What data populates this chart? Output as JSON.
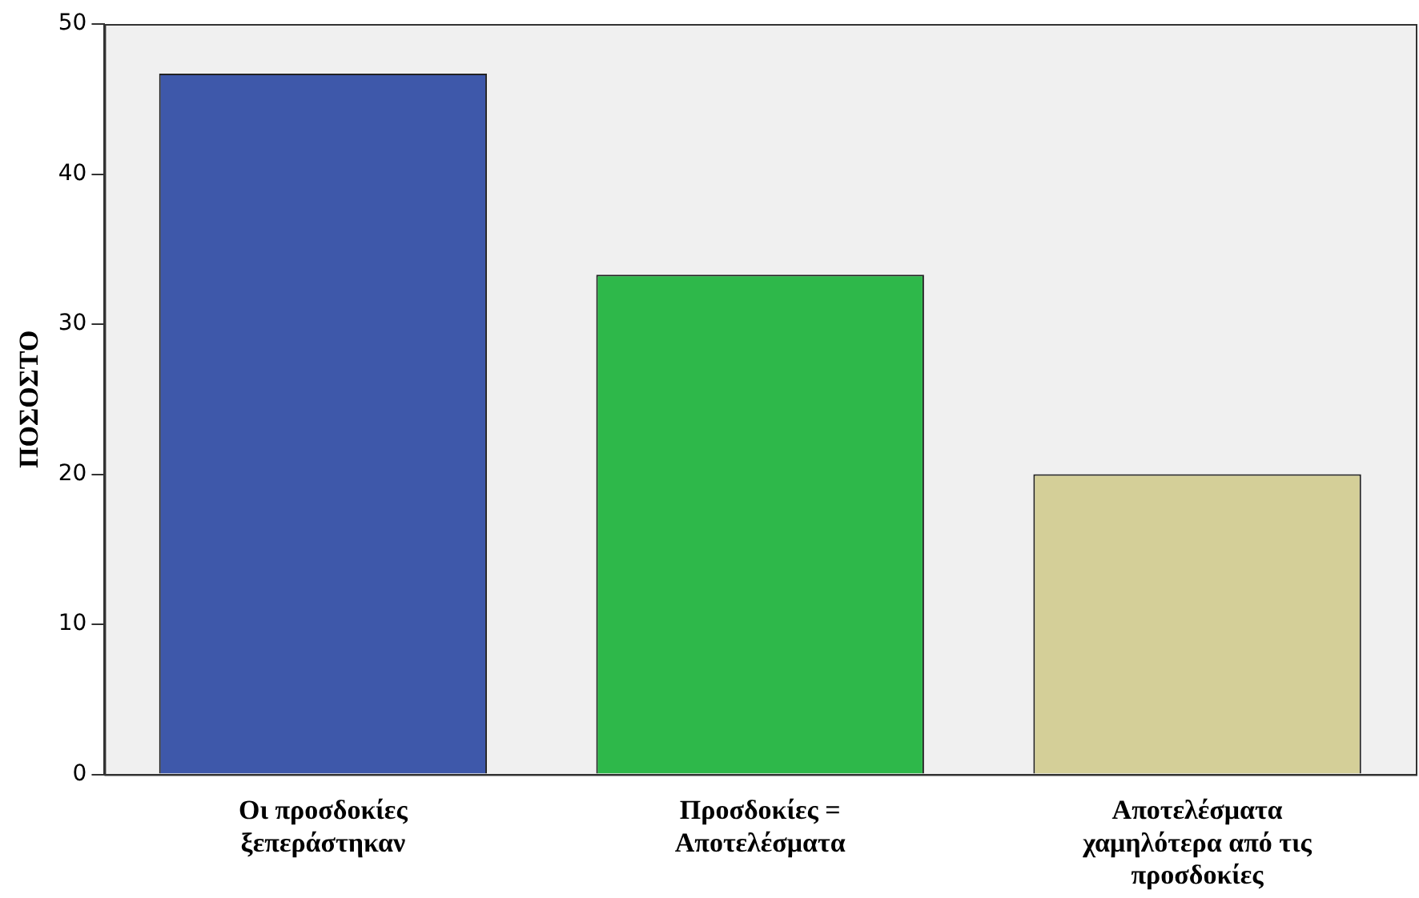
{
  "chart_data": {
    "type": "bar",
    "ylabel": "ΠΟΣΟΣΤΟ",
    "categories": [
      "Οι προσδοκίες ξεπεράστηκαν",
      "Προσδοκίες = Αποτελέσματα",
      "Αποτελέσματα χαμηλότερα από τις προσδοκίες"
    ],
    "values": [
      46.7,
      33.3,
      20.0
    ],
    "colors": [
      "#3e58aa",
      "#2eb84a",
      "#d4cf98"
    ],
    "ylim": [
      0,
      50
    ],
    "yticks": [
      0,
      10,
      20,
      30,
      40,
      50
    ],
    "grid": false,
    "legend": false
  }
}
